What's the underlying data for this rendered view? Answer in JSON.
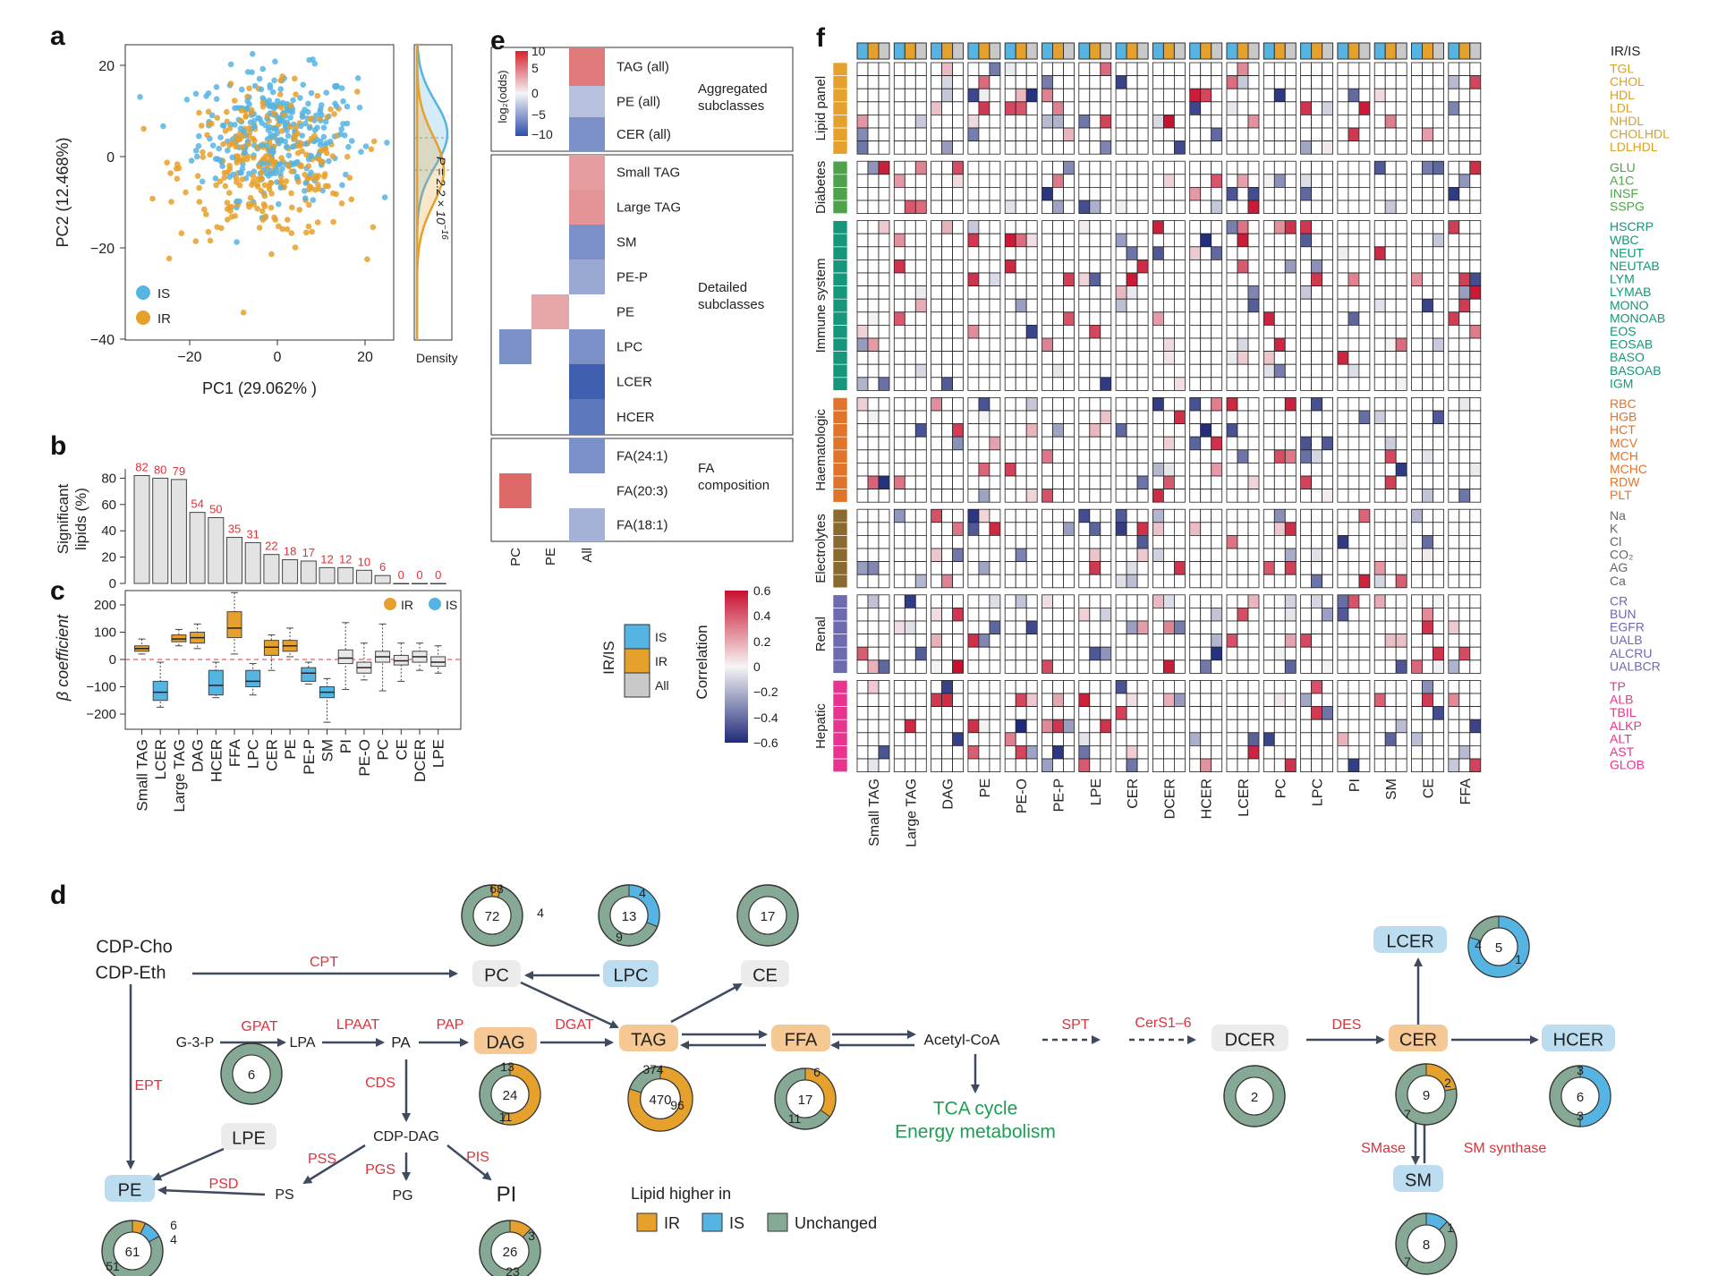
{
  "colors": {
    "IS": "#56b4e3",
    "IR": "#e6a02c",
    "All": "#c9c9c9",
    "unchanged": "#86a996",
    "enzyme": "#e0303a",
    "arrow": "#3e4a5e",
    "green": "#1f9d55"
  },
  "panel_a": {
    "letter": "a",
    "xlabel": "PC1 (29.062% )",
    "ylabel": "PC2 (12.468%)",
    "xticks": [
      "−20",
      "0",
      "20"
    ],
    "yticks": [
      "20",
      "0",
      "−20",
      "−40"
    ],
    "density_label": "Density",
    "p_value": "P = 2.2 × 10",
    "p_exp": "−16",
    "legend": [
      {
        "name": "IS",
        "color": "#56b4e3"
      },
      {
        "name": "IR",
        "color": "#e6a02c"
      }
    ]
  },
  "panel_b": {
    "letter": "b",
    "ylabel_1": "Significant",
    "ylabel_2": "lipids (%)",
    "yticks": [
      "80",
      "60",
      "40",
      "20",
      "0"
    ]
  },
  "panel_c": {
    "letter": "c",
    "ylabel": "β coefficient",
    "yticks": [
      "200",
      "100",
      "0",
      "−100",
      "−200"
    ],
    "legend": [
      {
        "name": "IR",
        "color": "#e6a02c"
      },
      {
        "name": "IS",
        "color": "#56b4e3"
      }
    ]
  },
  "chart_data": [
    {
      "type": "bar",
      "categories": [
        "Small TAG",
        "LCER",
        "Large TAG",
        "DAG",
        "HCER",
        "FFA",
        "LPC",
        "CER",
        "PE",
        "PE-P",
        "SM",
        "PI",
        "PE-O",
        "PC",
        "CE",
        "DCER",
        "LPE"
      ],
      "values": [
        82,
        80,
        79,
        54,
        50,
        35,
        31,
        22,
        18,
        17,
        12,
        12,
        10,
        6,
        0,
        0,
        0
      ],
      "ylabel": "Significant lipids (%)",
      "ylim": [
        0,
        90
      ]
    },
    {
      "type": "box",
      "categories": [
        "Small TAG",
        "LCER",
        "Large TAG",
        "DAG",
        "HCER",
        "FFA",
        "LPC",
        "CER",
        "PE",
        "PE-P",
        "SM",
        "PI",
        "PE-O",
        "PC",
        "CE",
        "DCER",
        "LPE"
      ],
      "group": [
        "IR",
        "IS",
        "IR",
        "IR",
        "IS",
        "IR",
        "IS",
        "IR",
        "IR",
        "IS",
        "IS",
        "All",
        "All",
        "All",
        "All",
        "All",
        "All"
      ],
      "medians": [
        40,
        -120,
        75,
        80,
        -95,
        115,
        -80,
        45,
        50,
        -50,
        -120,
        5,
        -30,
        10,
        -5,
        10,
        -10
      ],
      "q1": [
        30,
        -150,
        65,
        60,
        -130,
        80,
        -100,
        15,
        30,
        -80,
        -140,
        -15,
        -50,
        -10,
        -20,
        -10,
        -25
      ],
      "q3": [
        50,
        -80,
        90,
        100,
        -40,
        175,
        -40,
        70,
        70,
        -30,
        -100,
        35,
        -10,
        30,
        15,
        30,
        10
      ],
      "whisker_low": [
        20,
        -175,
        50,
        40,
        -140,
        20,
        -130,
        -40,
        10,
        -90,
        -230,
        -110,
        -75,
        -115,
        -80,
        -40,
        -50
      ],
      "whisker_high": [
        75,
        -10,
        110,
        130,
        -10,
        245,
        -15,
        90,
        115,
        -10,
        -70,
        135,
        60,
        130,
        60,
        60,
        50
      ],
      "ylabel": "β coefficient",
      "ylim": [
        -240,
        210
      ]
    },
    {
      "type": "heatmap",
      "title": "",
      "columns": [
        "PC",
        "PE",
        "All"
      ],
      "rows": [
        "TAG (all)",
        "PE (all)",
        "CER (all)",
        "Small TAG",
        "Large TAG",
        "SM",
        "PE-P",
        "PE",
        "LPC",
        "LCER",
        "HCER",
        "FA(24:1)",
        "FA(20:3)",
        "FA(18:1)"
      ],
      "values": [
        [
          null,
          null,
          7
        ],
        [
          null,
          null,
          -3
        ],
        [
          null,
          null,
          -6
        ],
        [
          null,
          null,
          5
        ],
        [
          null,
          null,
          5.5
        ],
        [
          null,
          null,
          -6
        ],
        [
          null,
          null,
          -4.5
        ],
        [
          null,
          4.5,
          null
        ],
        [
          -6,
          null,
          -6
        ],
        [
          null,
          null,
          -9
        ],
        [
          null,
          null,
          -7.5
        ],
        [
          null,
          null,
          -6
        ],
        [
          8,
          null,
          null
        ],
        [
          null,
          null,
          -4
        ]
      ],
      "colorbar_label": "log2(odds)",
      "colorbar_ticks": [
        "10",
        "5",
        "0",
        "−5",
        "−10"
      ],
      "groups": [
        "Aggregated subclasses",
        "Detailed subclasses",
        "FA composition"
      ]
    }
  ],
  "panel_e": {
    "letter": "e",
    "cb_label": "log₂(odds)",
    "cb_ticks": [
      "10",
      "5",
      "0",
      "−5",
      "−10"
    ],
    "col_labels": [
      "PC",
      "PE",
      "All"
    ],
    "row_labels": [
      "TAG (all)",
      "PE (all)",
      "CER (all)",
      "Small TAG",
      "Large TAG",
      "SM",
      "PE-P",
      "PE",
      "LPC",
      "LCER",
      "HCER",
      "FA(24:1)",
      "FA(20:3)",
      "FA(18:1)"
    ],
    "group1_a": "Aggregated",
    "group1_b": "subclasses",
    "group2_a": "Detailed",
    "group2_b": "subclasses",
    "group3_a": "FA",
    "group3_b": "composition",
    "irs_title": "IR/IS",
    "irs_items": [
      "IS",
      "IR",
      "All"
    ],
    "corr_title": "Correlation",
    "corr_ticks": [
      "0.6",
      "0.4",
      "0.2",
      "0",
      "−0.2",
      "−0.4",
      "−0.6"
    ]
  },
  "panel_f": {
    "letter": "f",
    "irs_label": "IR/IS",
    "columns": [
      "Small TAG",
      "Large TAG",
      "DAG",
      "PE",
      "PE-O",
      "PE-P",
      "LPE",
      "CER",
      "DCER",
      "HCER",
      "LCER",
      "PC",
      "LPC",
      "PI",
      "SM",
      "CE",
      "FFA"
    ],
    "groups": [
      {
        "name": "Lipid panel",
        "color": "#e6a02c",
        "text_color": "#d9a12a",
        "rows": [
          "TGL",
          "CHOL",
          "HDL",
          "LDL",
          "NHDL",
          "CHOLHDL",
          "LDLHDL"
        ]
      },
      {
        "name": "Diabetes",
        "color": "#4ea34a",
        "text_color": "#4ea34a",
        "rows": [
          "GLU",
          "A1C",
          "INSF",
          "SSPG"
        ]
      },
      {
        "name": "Immune system",
        "color": "#16967a",
        "text_color": "#16967a",
        "rows": [
          "HSCRP",
          "WBC",
          "NEUT",
          "NEUTAB",
          "LYM",
          "LYMAB",
          "MONO",
          "MONOAB",
          "EOS",
          "EOSAB",
          "BASO",
          "BASOAB",
          "IGM"
        ]
      },
      {
        "name": "Haematologic",
        "color": "#e0742a",
        "text_color": "#e0742a",
        "rows": [
          "RBC",
          "HGB",
          "HCT",
          "MCV",
          "MCH",
          "MCHC",
          "RDW",
          "PLT"
        ]
      },
      {
        "name": "Electrolytes",
        "color": "#8a6a2e",
        "text_color": "#666666",
        "rows": [
          "Na",
          "K",
          "Cl",
          "CO₂",
          "AG",
          "Ca"
        ]
      },
      {
        "name": "Renal",
        "color": "#6f69b0",
        "text_color": "#6f69b0",
        "rows": [
          "CR",
          "BUN",
          "EGFR",
          "UALB",
          "ALCRU",
          "UALBCR"
        ]
      },
      {
        "name": "Hepatic",
        "color": "#e8338f",
        "text_color": "#e8338f",
        "rows": [
          "TP",
          "ALB",
          "TBIL",
          "ALKP",
          "ALT",
          "AST",
          "GLOB"
        ]
      }
    ]
  },
  "panel_d": {
    "letter": "d",
    "nodes": {
      "cdp_cho": "CDP-Cho",
      "cdp_eth": "CDP-Eth",
      "g3p": "G-3-P",
      "lpa": "LPA",
      "pa": "PA",
      "dag": "DAG",
      "tag": "TAG",
      "ffa": "FFA",
      "acetyl": "Acetyl-CoA",
      "pc": "PC",
      "lpc": "LPC",
      "ce": "CE",
      "cdpdag": "CDP-DAG",
      "ps": "PS",
      "pg": "PG",
      "pi": "PI",
      "pe": "PE",
      "lpe": "LPE",
      "tca1": "TCA cycle",
      "tca2": "Energy metabolism",
      "dcer": "DCER",
      "cer": "CER",
      "lcer": "LCER",
      "hcer": "HCER",
      "sm": "SM"
    },
    "enzymes": {
      "cpt": "CPT",
      "gpat": "GPAT",
      "lpaat": "LPAAT",
      "pap": "PAP",
      "dgat": "DGAT",
      "cds": "CDS",
      "ept": "EPT",
      "pss": "PSS",
      "pgs": "PGS",
      "pis": "PIS",
      "psd": "PSD",
      "spt": "SPT",
      "cers": "CerS1–6",
      "des": "DES",
      "smase": "SMase",
      "smsyn": "SM synthase"
    },
    "donuts": {
      "pc": {
        "total": "72",
        "ir": "4",
        "is": "",
        "unchanged": "68",
        "fir": 0.05,
        "fis": 0
      },
      "lpc": {
        "total": "13",
        "ir": "",
        "is": "4",
        "unchanged": "9",
        "fir": 0,
        "fis": 0.31
      },
      "ce": {
        "total": "17",
        "ir": "",
        "is": "",
        "unchanged": "",
        "fir": 0,
        "fis": 0
      },
      "lpe": {
        "total": "6",
        "ir": "",
        "is": "",
        "unchanged": "",
        "fir": 0,
        "fis": 0
      },
      "dag": {
        "total": "24",
        "ir": "13",
        "is": "",
        "unchanged": "11",
        "fir": 0.54,
        "fis": 0
      },
      "tag": {
        "total": "470",
        "ir": "374",
        "is": "",
        "unchanged": "96",
        "fir": 0.8,
        "fis": 0
      },
      "ffa": {
        "total": "17",
        "ir": "6",
        "is": "",
        "unchanged": "11",
        "fir": 0.35,
        "fis": 0
      },
      "pe": {
        "total": "61",
        "ir": "4",
        "is": "6",
        "unchanged": "51",
        "fir": 0.07,
        "fis": 0.1
      },
      "pi": {
        "total": "26",
        "ir": "3",
        "is": "",
        "unchanged": "23",
        "fir": 0.12,
        "fis": 0
      },
      "dcer": {
        "total": "2",
        "ir": "",
        "is": "",
        "unchanged": "",
        "fir": 0,
        "fis": 0
      },
      "cer": {
        "total": "9",
        "ir": "2",
        "is": "",
        "unchanged": "7",
        "fir": 0.22,
        "fis": 0
      },
      "lcer": {
        "total": "5",
        "ir": "",
        "is": "4",
        "unchanged": "1",
        "fir": 0,
        "fis": 0.8
      },
      "hcer": {
        "total": "6",
        "ir": "",
        "is": "3",
        "unchanged": "3",
        "fir": 0,
        "fis": 0.5
      },
      "sm": {
        "total": "8",
        "ir": "",
        "is": "1",
        "unchanged": "7",
        "fir": 0,
        "fis": 0.12
      }
    },
    "legend_title": "Lipid higher in",
    "legend_items": [
      "IR",
      "IS",
      "Unchanged"
    ]
  }
}
